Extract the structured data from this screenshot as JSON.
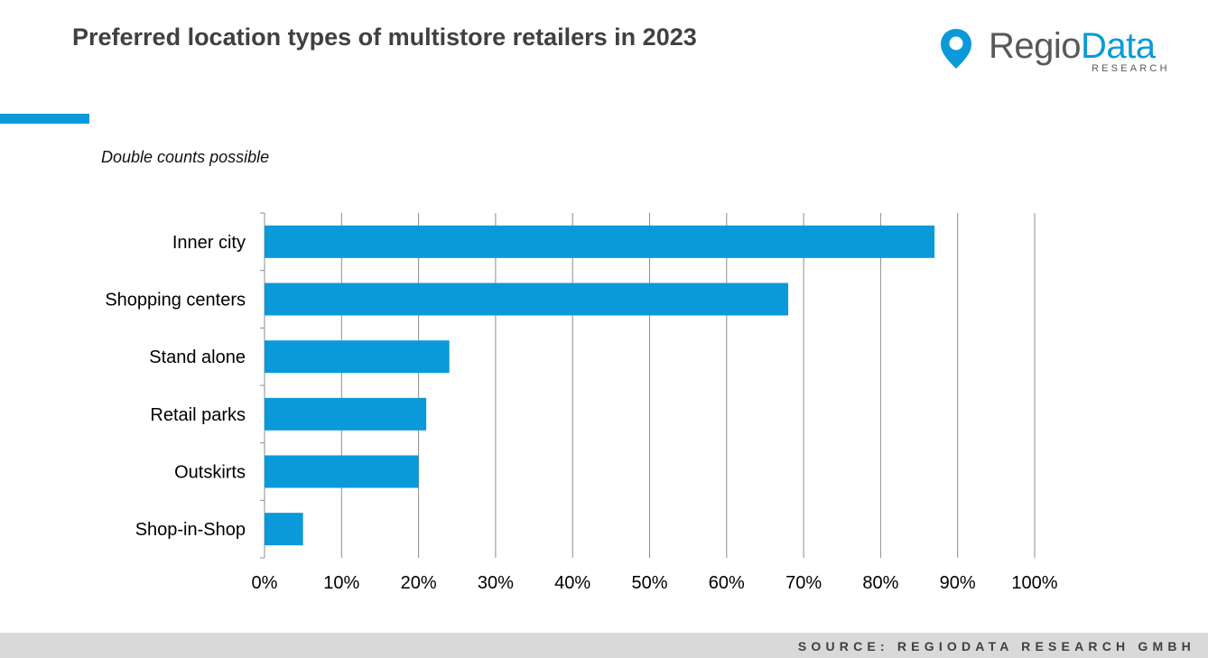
{
  "header": {
    "title": "Preferred location types of multistore retailers in 2023",
    "note": "Double counts possible"
  },
  "logo": {
    "word_regio": "Regio",
    "word_data": "Data",
    "subtitle": "RESEARCH",
    "icon": "map-pin-icon"
  },
  "footer": {
    "source": "SOURCE: REGIODATA RESEARCH GMBH"
  },
  "colors": {
    "accent": "#0a9ad9",
    "bar": "#0a9ad9",
    "grid": "#8c8c8c",
    "footer_bg": "#d9d9d9"
  },
  "chart_data": {
    "type": "bar",
    "orientation": "horizontal",
    "categories": [
      "Inner city",
      "Shopping centers",
      "Stand alone",
      "Retail parks",
      "Outskirts",
      "Shop-in-Shop"
    ],
    "values": [
      87,
      68,
      24,
      21,
      20,
      5
    ],
    "unit": "%",
    "xlim": [
      0,
      100
    ],
    "x_ticks": [
      "0%",
      "10%",
      "20%",
      "30%",
      "40%",
      "50%",
      "60%",
      "70%",
      "80%",
      "90%",
      "100%"
    ],
    "grid": "vertical",
    "legend": "none"
  }
}
